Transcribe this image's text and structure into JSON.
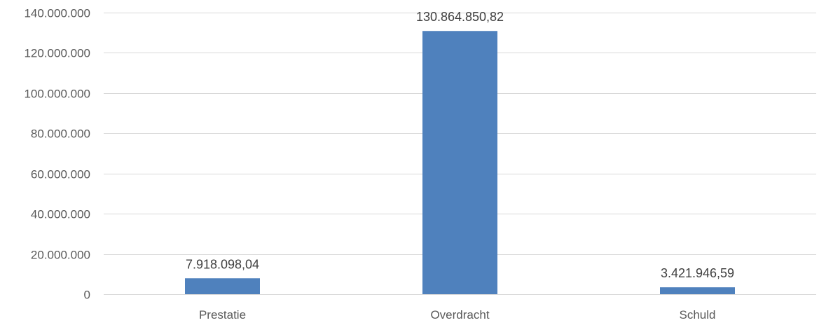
{
  "chart_data": {
    "type": "bar",
    "categories": [
      "Prestatie",
      "Overdracht",
      "Schuld"
    ],
    "values": [
      7918098.04,
      130864850.82,
      3421946.59
    ],
    "data_labels": [
      "7.918.098,04",
      "130.864.850,82",
      "3.421.946,59"
    ],
    "title": "",
    "xlabel": "",
    "ylabel": "",
    "ylim": [
      0,
      140000000
    ],
    "y_ticks": [
      0,
      20000000,
      40000000,
      60000000,
      80000000,
      100000000,
      120000000,
      140000000
    ],
    "y_tick_labels": [
      "0",
      "20.000.000",
      "40.000.000",
      "60.000.000",
      "80.000.000",
      "100.000.000",
      "120.000.000",
      "140.000.000"
    ],
    "grid": true,
    "legend": "none",
    "colors": {
      "bar": "#4f81bd",
      "grid": "#d9d9d9",
      "tick_text": "#595959",
      "label_text": "#404040"
    }
  }
}
